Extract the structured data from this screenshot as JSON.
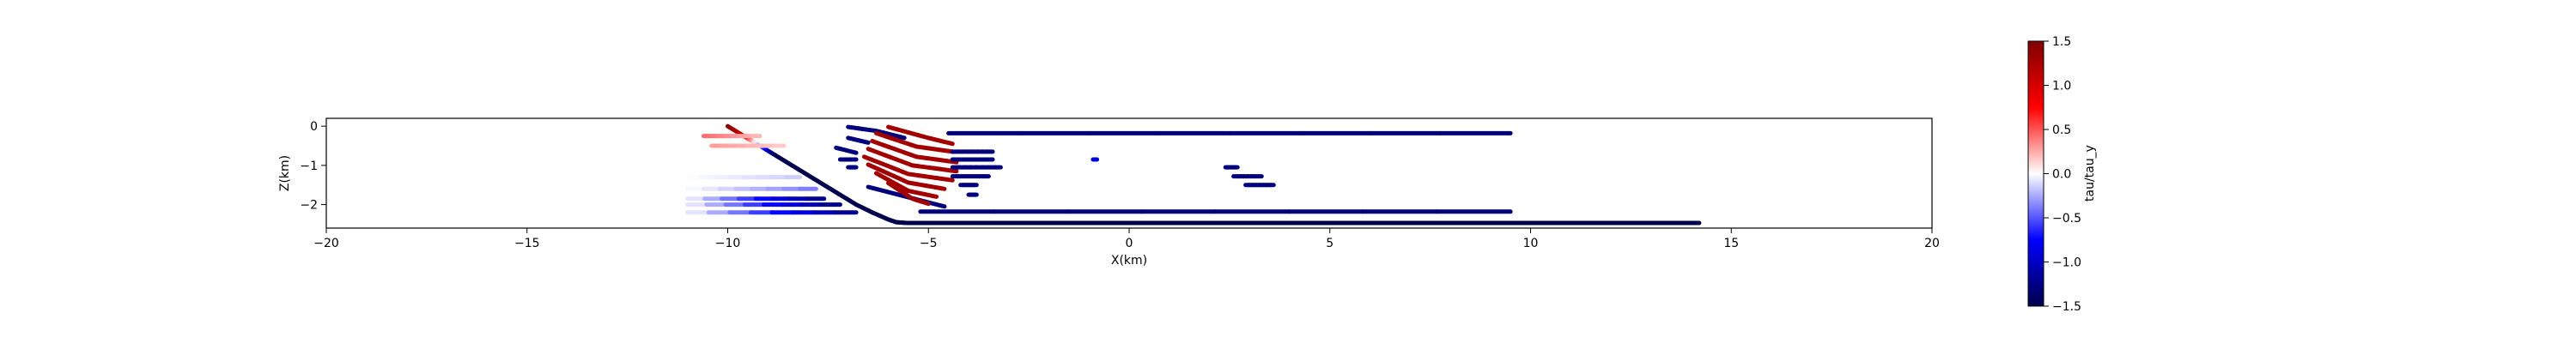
{
  "chart_data": {
    "type": "scatter",
    "title": "",
    "xlabel": "X(km)",
    "ylabel": "Z(km)",
    "xlim": [
      -20,
      20
    ],
    "ylim": [
      -2.6,
      0.2
    ],
    "xticks": [
      -20,
      -15,
      -10,
      -5,
      0,
      5,
      10,
      15,
      20
    ],
    "xtick_labels": [
      "−20",
      "−15",
      "−10",
      "−5",
      "0",
      "5",
      "10",
      "15",
      "20"
    ],
    "yticks": [
      0,
      -1,
      -2
    ],
    "ytick_labels": [
      "0",
      "−1",
      "−2"
    ],
    "grid": false,
    "colormap": "seismic",
    "colorbar": {
      "label": "tau/tau_y",
      "range": [
        -1.5,
        1.5
      ],
      "ticks": [
        1.5,
        1.0,
        0.5,
        0.0,
        -0.5,
        -1.0,
        -1.5
      ],
      "tick_labels": [
        "1.5",
        "1.0",
        "0.5",
        "0.0",
        "−0.5",
        "−1.0",
        "−1.5"
      ]
    },
    "segments": [
      {
        "x": [
          -10,
          -9.6,
          -9.2,
          -8.8,
          -8.4,
          -8,
          -7.6,
          -7.2,
          -6.8,
          -6.4,
          -6,
          -5.8,
          -5.5,
          0,
          5,
          10,
          14.2
        ],
        "z": [
          0,
          -0.25,
          -0.5,
          -0.75,
          -1.0,
          -1.25,
          -1.5,
          -1.75,
          -2.0,
          -2.2,
          -2.38,
          -2.45,
          -2.47,
          -2.47,
          -2.47,
          -2.47,
          -2.47
        ],
        "value": [
          1.5,
          1.0,
          -0.3,
          -1.5,
          -1.5,
          -1.5,
          -1.5,
          -1.5,
          -1.5,
          -1.5,
          -1.5,
          -1.5,
          -1.5,
          -1.5,
          -1.5,
          -1.5,
          -1.5
        ]
      },
      {
        "x": [
          -11,
          -7.6
        ],
        "z": [
          -1.85,
          -1.85
        ],
        "value": [
          0.0,
          -1.3
        ]
      },
      {
        "x": [
          -11,
          -7.2
        ],
        "z": [
          -2.0,
          -2.0
        ],
        "value": [
          0.0,
          -1.3
        ]
      },
      {
        "x": [
          -11,
          -6.8
        ],
        "z": [
          -2.2,
          -2.2
        ],
        "value": [
          0.0,
          -1.3
        ]
      },
      {
        "x": [
          -11,
          -7.8
        ],
        "z": [
          -1.6,
          -1.6
        ],
        "value": [
          0.0,
          -0.4
        ]
      },
      {
        "x": [
          -11,
          -8.2
        ],
        "z": [
          -1.3,
          -1.3
        ],
        "value": [
          0.0,
          -0.15
        ]
      },
      {
        "x": [
          -10.4,
          -8.6
        ],
        "z": [
          -0.5,
          -0.5
        ],
        "value": [
          0.3,
          0.15
        ]
      },
      {
        "x": [
          -10.6,
          -9.2
        ],
        "z": [
          -0.25,
          -0.25
        ],
        "value": [
          0.45,
          0.2
        ]
      },
      {
        "x": [
          -7,
          -6.3,
          -5.6
        ],
        "z": [
          -0.02,
          -0.12,
          -0.3
        ],
        "value": [
          -1.3,
          -1.3,
          -1.3
        ]
      },
      {
        "x": [
          -7,
          -6.5
        ],
        "z": [
          -0.3,
          -0.42
        ],
        "value": [
          -1.3,
          -1.3
        ]
      },
      {
        "x": [
          -7.3,
          -6.8
        ],
        "z": [
          -0.55,
          -0.68
        ],
        "value": [
          -1.3,
          -1.3
        ]
      },
      {
        "x": [
          -7.0,
          -6.8
        ],
        "z": [
          -1.05,
          -1.05
        ],
        "value": [
          -1.3,
          -1.3
        ]
      },
      {
        "x": [
          -7.2,
          -6.8
        ],
        "z": [
          -0.85,
          -0.85
        ],
        "value": [
          -1.3,
          -1.3
        ]
      },
      {
        "x": [
          -6.5,
          -4.6
        ],
        "z": [
          -1.55,
          -2.05
        ],
        "value": [
          -1.3,
          -1.3
        ]
      },
      {
        "x": [
          -6.0,
          -5.0,
          -4.4
        ],
        "z": [
          -0.02,
          -0.3,
          -0.45
        ],
        "value": [
          1.3,
          1.3,
          1.3
        ]
      },
      {
        "x": [
          -6.3,
          -5.3,
          -4.4
        ],
        "z": [
          -0.18,
          -0.52,
          -0.65
        ],
        "value": [
          1.3,
          1.3,
          1.3
        ]
      },
      {
        "x": [
          -6.4,
          -5.3,
          -4.3
        ],
        "z": [
          -0.38,
          -0.78,
          -0.92
        ],
        "value": [
          1.3,
          1.3,
          1.3
        ]
      },
      {
        "x": [
          -6.5,
          -5.4,
          -4.3
        ],
        "z": [
          -0.58,
          -1.0,
          -1.15
        ],
        "value": [
          1.3,
          1.3,
          1.3
        ]
      },
      {
        "x": [
          -6.6,
          -5.5,
          -4.4
        ],
        "z": [
          -0.78,
          -1.22,
          -1.38
        ],
        "value": [
          1.3,
          1.3,
          1.3
        ]
      },
      {
        "x": [
          -6.5,
          -5.5,
          -4.6
        ],
        "z": [
          -0.98,
          -1.44,
          -1.6
        ],
        "value": [
          1.3,
          1.3,
          1.3
        ]
      },
      {
        "x": [
          -6.3,
          -5.5,
          -4.8
        ],
        "z": [
          -1.2,
          -1.65,
          -1.8
        ],
        "value": [
          1.3,
          1.3,
          1.3
        ]
      },
      {
        "x": [
          -6.0,
          -5.4,
          -5.0
        ],
        "z": [
          -1.45,
          -1.85,
          -1.98
        ],
        "value": [
          1.3,
          1.3,
          1.3
        ]
      },
      {
        "x": [
          -4.5,
          9.5
        ],
        "z": [
          -0.18,
          -0.18
        ],
        "value": [
          -1.3,
          -1.3
        ]
      },
      {
        "x": [
          -4.4,
          -3.4
        ],
        "z": [
          -0.65,
          -0.65
        ],
        "value": [
          -1.3,
          -1.3
        ]
      },
      {
        "x": [
          -4.4,
          -3.4
        ],
        "z": [
          -0.85,
          -0.85
        ],
        "value": [
          -1.3,
          -1.3
        ]
      },
      {
        "x": [
          -4.4,
          -3.2
        ],
        "z": [
          -1.05,
          -1.05
        ],
        "value": [
          -1.3,
          -1.3
        ]
      },
      {
        "x": [
          -4.4,
          -3.5
        ],
        "z": [
          -1.28,
          -1.28
        ],
        "value": [
          -1.3,
          -1.3
        ]
      },
      {
        "x": [
          -4.2,
          -3.8
        ],
        "z": [
          -1.5,
          -1.5
        ],
        "value": [
          -1.3,
          -1.3
        ]
      },
      {
        "x": [
          -4.0,
          -3.8
        ],
        "z": [
          -1.75,
          -1.75
        ],
        "value": [
          -1.3,
          -1.3
        ]
      },
      {
        "x": [
          -5.2,
          9.5
        ],
        "z": [
          -2.18,
          -2.18
        ],
        "value": [
          -1.3,
          -1.3
        ]
      },
      {
        "x": [
          -0.9,
          -0.8
        ],
        "z": [
          -0.85,
          -0.85
        ],
        "value": [
          -0.9,
          -0.9
        ]
      },
      {
        "x": [
          2.4,
          2.7
        ],
        "z": [
          -1.05,
          -1.05
        ],
        "value": [
          -1.3,
          -1.3
        ]
      },
      {
        "x": [
          2.6,
          3.3
        ],
        "z": [
          -1.28,
          -1.28
        ],
        "value": [
          -1.3,
          -1.3
        ]
      },
      {
        "x": [
          2.9,
          3.6
        ],
        "z": [
          -1.5,
          -1.5
        ],
        "value": [
          -1.3,
          -1.3
        ]
      }
    ]
  }
}
